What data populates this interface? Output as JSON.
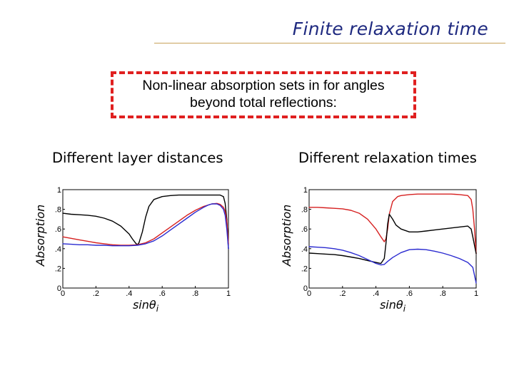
{
  "slide": {
    "title": "Finite relaxation time",
    "note_line1": "Non-linear absorption sets in for angles",
    "note_line2": "beyond total reflections:"
  },
  "chart_data": [
    {
      "type": "line",
      "title": "Different layer distances",
      "xlabel": "sinθi",
      "ylabel": "Absorption",
      "xlim": [
        0,
        1
      ],
      "ylim": [
        0,
        1
      ],
      "xticks": [
        0,
        0.2,
        0.4,
        0.6,
        0.8,
        1
      ],
      "yticks": [
        0,
        0.2,
        0.4,
        0.6,
        0.8,
        1
      ],
      "series": [
        {
          "color": "#000000",
          "x": [
            0,
            0.05,
            0.1,
            0.15,
            0.2,
            0.25,
            0.3,
            0.35,
            0.4,
            0.42,
            0.44,
            0.45,
            0.46,
            0.48,
            0.5,
            0.52,
            0.55,
            0.6,
            0.65,
            0.7,
            0.75,
            0.8,
            0.85,
            0.9,
            0.95,
            0.97,
            0.98,
            0.99,
            1.0
          ],
          "y": [
            0.76,
            0.75,
            0.745,
            0.74,
            0.73,
            0.71,
            0.68,
            0.63,
            0.55,
            0.5,
            0.455,
            0.44,
            0.46,
            0.57,
            0.72,
            0.83,
            0.9,
            0.93,
            0.94,
            0.945,
            0.945,
            0.945,
            0.945,
            0.945,
            0.945,
            0.93,
            0.86,
            0.7,
            0.4
          ]
        },
        {
          "color": "#d62020",
          "x": [
            0,
            0.05,
            0.1,
            0.15,
            0.2,
            0.25,
            0.3,
            0.35,
            0.4,
            0.45,
            0.5,
            0.55,
            0.6,
            0.65,
            0.7,
            0.75,
            0.8,
            0.85,
            0.9,
            0.93,
            0.95,
            0.97,
            0.98,
            0.99,
            1.0
          ],
          "y": [
            0.52,
            0.505,
            0.49,
            0.475,
            0.46,
            0.45,
            0.44,
            0.435,
            0.435,
            0.44,
            0.46,
            0.5,
            0.56,
            0.62,
            0.68,
            0.74,
            0.79,
            0.83,
            0.855,
            0.86,
            0.85,
            0.82,
            0.78,
            0.68,
            0.45
          ]
        },
        {
          "color": "#2a2ad0",
          "x": [
            0,
            0.05,
            0.1,
            0.15,
            0.2,
            0.25,
            0.3,
            0.35,
            0.4,
            0.45,
            0.5,
            0.55,
            0.6,
            0.65,
            0.7,
            0.75,
            0.8,
            0.85,
            0.88,
            0.9,
            0.93,
            0.95,
            0.97,
            0.98,
            0.99,
            1.0
          ],
          "y": [
            0.45,
            0.445,
            0.44,
            0.44,
            0.435,
            0.435,
            0.43,
            0.43,
            0.43,
            0.435,
            0.45,
            0.48,
            0.53,
            0.59,
            0.65,
            0.71,
            0.77,
            0.82,
            0.845,
            0.855,
            0.855,
            0.84,
            0.8,
            0.74,
            0.6,
            0.4
          ]
        }
      ]
    },
    {
      "type": "line",
      "title": "Different relaxation times",
      "xlabel": "sinθi",
      "ylabel": "Absorption",
      "xlim": [
        0,
        1
      ],
      "ylim": [
        0,
        1
      ],
      "xticks": [
        0,
        0.2,
        0.4,
        0.6,
        0.8,
        1
      ],
      "yticks": [
        0,
        0.2,
        0.4,
        0.6,
        0.8,
        1
      ],
      "series": [
        {
          "color": "#d62020",
          "x": [
            0,
            0.05,
            0.1,
            0.15,
            0.2,
            0.25,
            0.3,
            0.35,
            0.4,
            0.43,
            0.45,
            0.46,
            0.47,
            0.48,
            0.5,
            0.53,
            0.55,
            0.6,
            0.65,
            0.7,
            0.75,
            0.8,
            0.85,
            0.9,
            0.95,
            0.97,
            0.98,
            0.99,
            1.0
          ],
          "y": [
            0.82,
            0.82,
            0.815,
            0.81,
            0.805,
            0.79,
            0.76,
            0.7,
            0.6,
            0.52,
            0.47,
            0.5,
            0.6,
            0.75,
            0.88,
            0.93,
            0.94,
            0.95,
            0.955,
            0.955,
            0.955,
            0.955,
            0.955,
            0.95,
            0.94,
            0.9,
            0.8,
            0.6,
            0.35
          ]
        },
        {
          "color": "#000000",
          "x": [
            0,
            0.05,
            0.1,
            0.15,
            0.2,
            0.25,
            0.3,
            0.35,
            0.4,
            0.43,
            0.45,
            0.46,
            0.47,
            0.48,
            0.5,
            0.52,
            0.55,
            0.6,
            0.65,
            0.7,
            0.75,
            0.8,
            0.85,
            0.9,
            0.95,
            0.97,
            0.98,
            1.0
          ],
          "y": [
            0.355,
            0.35,
            0.345,
            0.34,
            0.33,
            0.315,
            0.3,
            0.28,
            0.26,
            0.25,
            0.3,
            0.45,
            0.65,
            0.75,
            0.7,
            0.64,
            0.6,
            0.57,
            0.57,
            0.58,
            0.59,
            0.6,
            0.61,
            0.62,
            0.63,
            0.6,
            0.52,
            0.35
          ]
        },
        {
          "color": "#2a2ad0",
          "x": [
            0,
            0.05,
            0.1,
            0.15,
            0.2,
            0.25,
            0.3,
            0.35,
            0.4,
            0.43,
            0.45,
            0.47,
            0.5,
            0.55,
            0.6,
            0.65,
            0.7,
            0.75,
            0.8,
            0.85,
            0.9,
            0.95,
            0.98,
            1.0
          ],
          "y": [
            0.42,
            0.415,
            0.41,
            0.4,
            0.385,
            0.36,
            0.33,
            0.29,
            0.25,
            0.235,
            0.24,
            0.27,
            0.31,
            0.36,
            0.39,
            0.395,
            0.39,
            0.375,
            0.355,
            0.33,
            0.3,
            0.26,
            0.21,
            0.05
          ]
        }
      ]
    }
  ]
}
